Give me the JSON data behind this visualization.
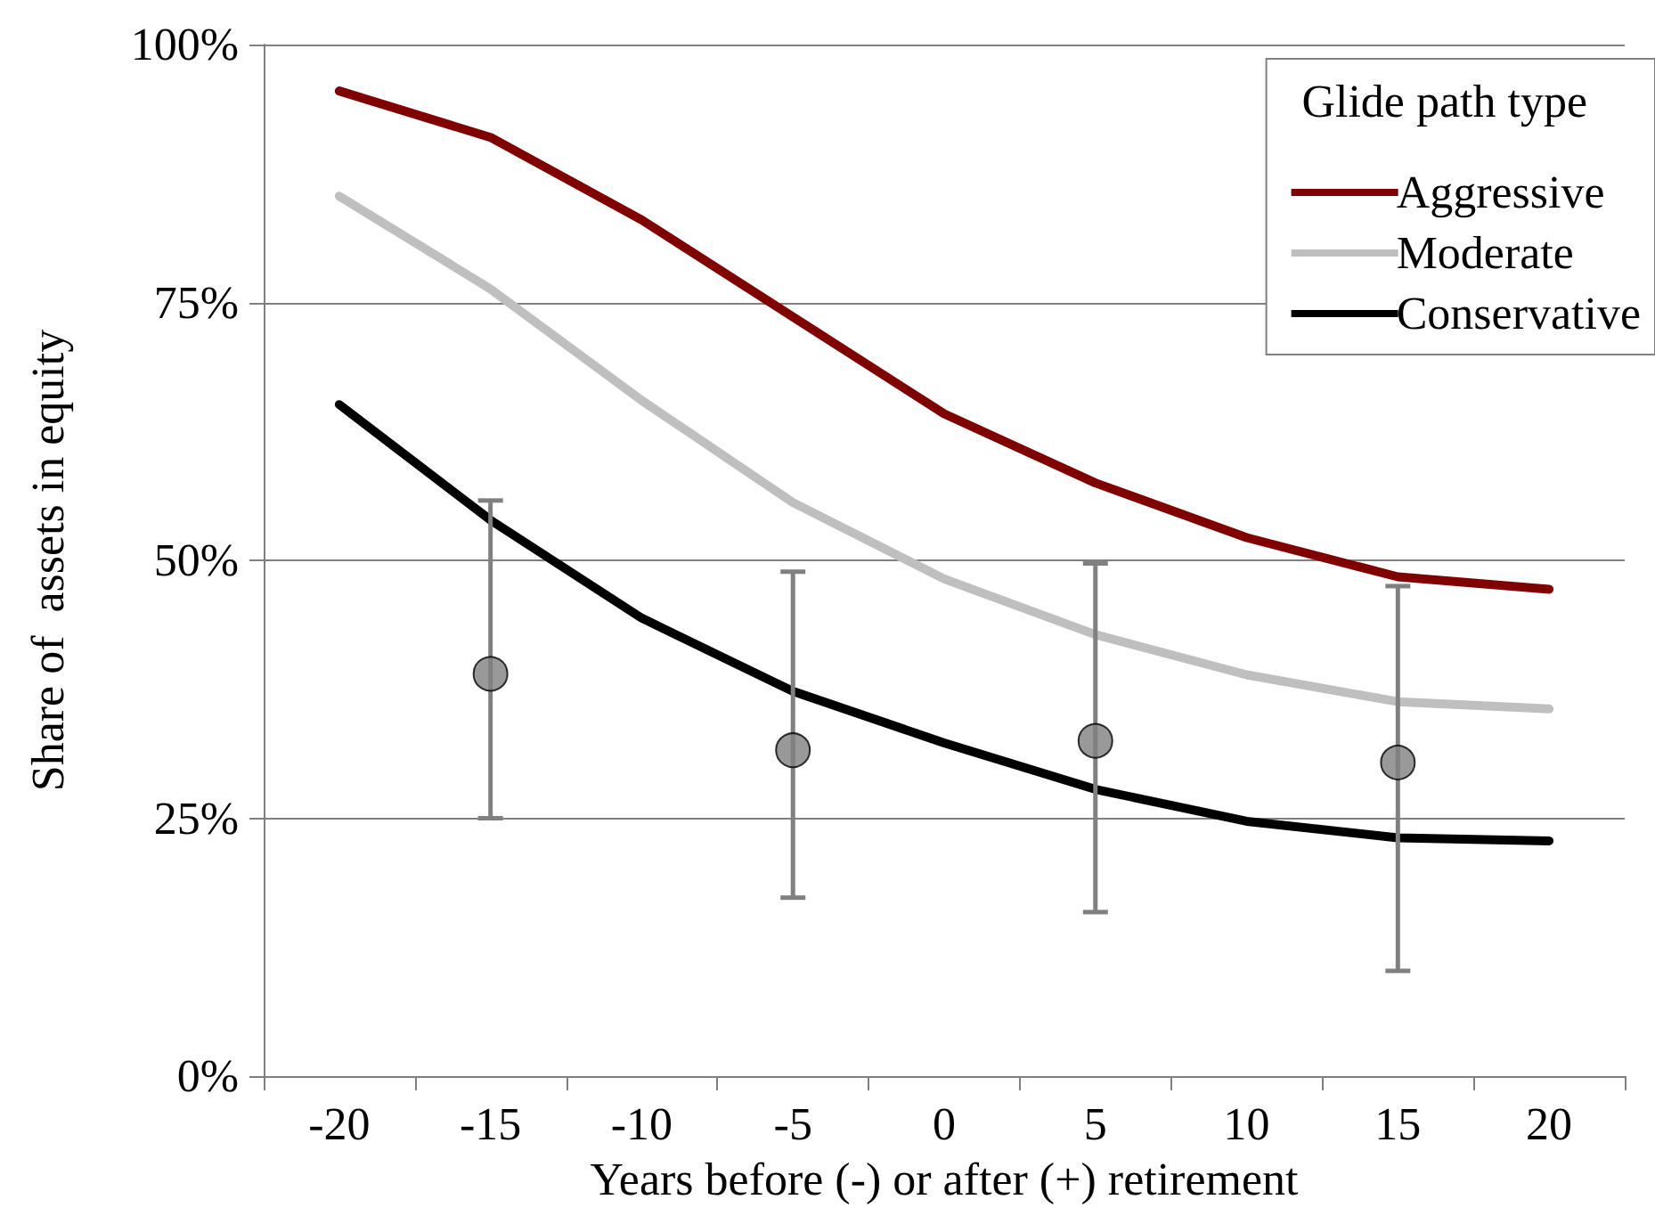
{
  "chart_data": {
    "type": "line",
    "xlabel": "Years before (-) or after (+) retirement",
    "ylabel": "Share of  assets in equity",
    "legend_title": "Glide path type",
    "categories": [
      "-20",
      "-15",
      "-10",
      "-5",
      "0",
      "5",
      "10",
      "15",
      "20"
    ],
    "series": [
      {
        "name": "Aggressive",
        "color": "#800000",
        "values": [
          95.5,
          91,
          83,
          73.6,
          64.2,
          57.5,
          52.2,
          48.4,
          47.2
        ]
      },
      {
        "name": "Moderate",
        "color": "#bfbfbf",
        "values": [
          85.3,
          76.3,
          65.5,
          55.6,
          48.2,
          42.8,
          38.9,
          36.3,
          35.6
        ]
      },
      {
        "name": "Conservative",
        "color": "#000000",
        "values": [
          65.1,
          53.9,
          44.4,
          37.3,
          32.3,
          27.8,
          24.7,
          23.1,
          22.8
        ]
      },
      {
        "type": "scatter",
        "marker": "circle",
        "color": "#808080",
        "x": [
          "-15",
          "-5",
          "5",
          "15"
        ],
        "values": [
          39,
          31.6,
          32.5,
          30.4
        ],
        "errors": [
          [
            25,
            55.8
          ],
          [
            17.3,
            48.9
          ],
          [
            15.9,
            49.7
          ],
          [
            10.2,
            47.5
          ]
        ]
      }
    ],
    "ylim": [
      0,
      100
    ],
    "yticks": [
      {
        "value": 0,
        "label": "0%"
      },
      {
        "value": 25,
        "label": "25%"
      },
      {
        "value": 50,
        "label": "50%"
      },
      {
        "value": 75,
        "label": "75%"
      },
      {
        "value": 100,
        "label": "100%"
      }
    ],
    "grid": "y",
    "legend": "top right",
    "marker": "none",
    "line_style": "solid"
  }
}
